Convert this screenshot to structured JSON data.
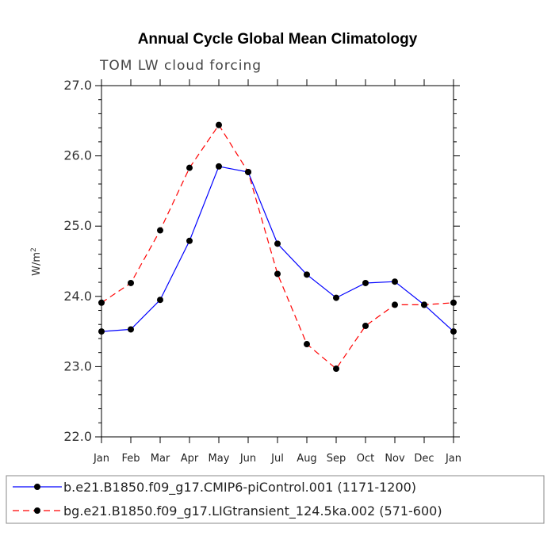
{
  "chart_data": {
    "type": "line",
    "title": "Annual Cycle Global Mean Climatology",
    "subtitle": "TOM LW cloud forcing",
    "ylabel": "W/m",
    "ylabel_sup": "2",
    "ylim": [
      22.0,
      27.0
    ],
    "yticks": [
      "22.0",
      "23.0",
      "24.0",
      "25.0",
      "26.0",
      "27.0"
    ],
    "categories": [
      "Jan",
      "Feb",
      "Mar",
      "Apr",
      "May",
      "Jun",
      "Jul",
      "Aug",
      "Sep",
      "Oct",
      "Nov",
      "Dec",
      "Jan"
    ],
    "grid": false,
    "legend_position": "bottom",
    "series": [
      {
        "name": "b.e21.B1850.f09_g17.CMIP6-piControl.001 (1171-1200)",
        "color": "#0000ff",
        "dash": "solid",
        "values": [
          23.5,
          23.53,
          23.95,
          24.79,
          25.85,
          25.77,
          24.75,
          24.31,
          23.98,
          24.19,
          24.21,
          23.88,
          23.5
        ]
      },
      {
        "name": "bg.e21.B1850.f09_g17.LIGtransient_124.5ka.002 (571-600)",
        "color": "#ff0000",
        "dash": "dashed",
        "values": [
          23.91,
          24.19,
          24.94,
          25.83,
          26.44,
          25.77,
          24.32,
          23.32,
          22.97,
          23.58,
          23.88,
          23.88,
          23.91
        ]
      }
    ]
  }
}
